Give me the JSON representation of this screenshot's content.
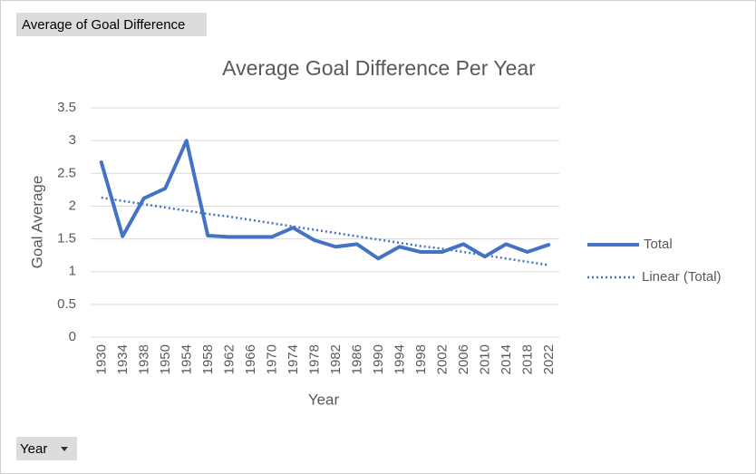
{
  "chart_data": {
    "type": "line",
    "title": "Average Goal Difference Per Year",
    "value_field_button": "Average of Goal Difference",
    "axis_field_button": "Year",
    "x_label": "Year",
    "y_label": "Goal Average",
    "categories": [
      "1930",
      "1934",
      "1938",
      "1950",
      "1954",
      "1958",
      "1962",
      "1966",
      "1970",
      "1974",
      "1978",
      "1982",
      "1986",
      "1990",
      "1994",
      "1998",
      "2002",
      "2006",
      "2010",
      "2014",
      "2018",
      "2022"
    ],
    "series": [
      {
        "name": "Total",
        "color": "#4472c4",
        "style": "solid",
        "values": [
          2.67,
          1.54,
          2.12,
          2.27,
          3.0,
          1.55,
          1.53,
          1.53,
          1.53,
          1.67,
          1.48,
          1.38,
          1.42,
          1.2,
          1.38,
          1.3,
          1.3,
          1.42,
          1.23,
          1.42,
          1.3,
          1.41
        ]
      },
      {
        "name": "Linear (Total)",
        "color": "#4472c4",
        "style": "dotted",
        "values": [
          2.13,
          2.08,
          2.03,
          1.98,
          1.93,
          1.88,
          1.84,
          1.79,
          1.74,
          1.69,
          1.64,
          1.59,
          1.54,
          1.49,
          1.44,
          1.39,
          1.35,
          1.3,
          1.25,
          1.2,
          1.15,
          1.1
        ]
      }
    ],
    "ylim": [
      0,
      3.5
    ],
    "yticks": [
      0,
      0.5,
      1,
      1.5,
      2,
      2.5,
      3,
      3.5
    ],
    "grid": true,
    "legend": "right"
  }
}
